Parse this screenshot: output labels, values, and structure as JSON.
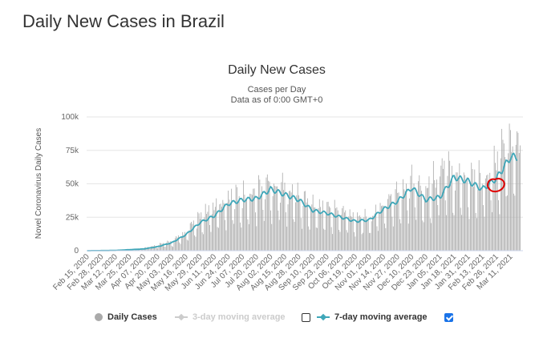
{
  "page": {
    "heading": "Daily New Cases in Brazil"
  },
  "chart_data": {
    "type": "bar",
    "title": "Daily New Cases",
    "subtitle_1": "Cases per Day",
    "subtitle_2": "Data as of 0:00 GMT+0",
    "ylabel": "Novel Coronavirus Daily Cases",
    "ylim": [
      0,
      100000
    ],
    "yticks": [
      {
        "value": 0,
        "label": "0"
      },
      {
        "value": 25000,
        "label": "25k"
      },
      {
        "value": 50000,
        "label": "50k"
      },
      {
        "value": 75000,
        "label": "75k"
      },
      {
        "value": 100000,
        "label": "100k"
      }
    ],
    "xticks": [
      "Feb 15, 2020",
      "Feb 28, 2020",
      "Mar 12, 2020",
      "Mar 25, 2020",
      "Apr 07, 2020",
      "Apr 20, 2020",
      "May 03, 2020",
      "May 16, 2020",
      "May 29, 2020",
      "Jun 11, 2020",
      "Jun 24, 2020",
      "Jul 07, 2020",
      "Jul 20, 2020",
      "Aug 02, 2020",
      "Aug 15, 2020",
      "Aug 28, 2020",
      "Sep 10, 2020",
      "Sep 23, 2020",
      "Oct 06, 2020",
      "Oct 19, 2020",
      "Nov 01, 2020",
      "Nov 14, 2020",
      "Nov 27, 2020",
      "Dec 10, 2020",
      "Dec 23, 2020",
      "Jan 05, 2021",
      "Jan 18, 2021",
      "Jan 31, 2021",
      "Feb 13, 2021",
      "Feb 26, 2021",
      "Mar 11, 2021"
    ],
    "grid": true,
    "legend_position": "bottom",
    "series": [
      {
        "name": "Daily Cases",
        "color": "#aaaaaa",
        "kind": "bar",
        "visible": true
      },
      {
        "name": "3-day moving average",
        "color": "#cccccc",
        "kind": "line",
        "visible": false
      },
      {
        "name": "7-day moving average",
        "color": "#3fa7b9",
        "kind": "line",
        "visible": true
      }
    ],
    "seven_day_average": {
      "dates": [
        "Feb 15, 2020",
        "Mar 12, 2020",
        "Apr 07, 2020",
        "Apr 20, 2020",
        "May 03, 2020",
        "May 16, 2020",
        "May 29, 2020",
        "Jun 11, 2020",
        "Jun 24, 2020",
        "Jul 07, 2020",
        "Jul 20, 2020",
        "Aug 02, 2020",
        "Aug 15, 2020",
        "Aug 28, 2020",
        "Sep 10, 2020",
        "Sep 23, 2020",
        "Oct 06, 2020",
        "Oct 19, 2020",
        "Nov 01, 2020",
        "Nov 14, 2020",
        "Nov 27, 2020",
        "Dec 10, 2020",
        "Dec 23, 2020",
        "Jan 05, 2021",
        "Jan 18, 2021",
        "Jan 31, 2021",
        "Feb 13, 2021",
        "Feb 26, 2021",
        "Mar 11, 2021"
      ],
      "values": [
        0,
        200,
        1300,
        3000,
        6000,
        12000,
        21000,
        26000,
        35000,
        38000,
        39000,
        46000,
        42000,
        38000,
        30000,
        28000,
        25000,
        22000,
        23000,
        31000,
        37000,
        47000,
        38000,
        40000,
        55000,
        52000,
        46000,
        54000,
        70000
      ]
    },
    "daily_cases": {
      "dates": [
        "Feb 15, 2020",
        "Mar 12, 2020",
        "Apr 07, 2020",
        "May 03, 2020",
        "May 16, 2020",
        "May 29, 2020",
        "Jun 11, 2020",
        "Jun 24, 2020",
        "Jul 07, 2020",
        "Jul 20, 2020",
        "Aug 02, 2020",
        "Aug 15, 2020",
        "Aug 28, 2020",
        "Sep 10, 2020",
        "Sep 23, 2020",
        "Oct 06, 2020",
        "Oct 19, 2020",
        "Nov 01, 2020",
        "Nov 14, 2020",
        "Nov 27, 2020",
        "Dec 10, 2020",
        "Dec 23, 2020",
        "Jan 05, 2021",
        "Jan 18, 2021",
        "Jan 31, 2021",
        "Feb 13, 2021",
        "Feb 26, 2021",
        "Mar 11, 2021"
      ],
      "values": [
        0,
        200,
        2000,
        7000,
        14000,
        25000,
        33000,
        40000,
        42000,
        47000,
        52000,
        48000,
        42000,
        35000,
        33000,
        30000,
        27000,
        25000,
        36000,
        45000,
        55000,
        45000,
        62000,
        60000,
        58000,
        55000,
        65000,
        85000
      ]
    }
  },
  "legend": {
    "daily_label": "Daily Cases",
    "three_day_label": "3-day moving average",
    "seven_day_label": "7-day moving average",
    "three_day_checked": false,
    "seven_day_checked": true
  }
}
